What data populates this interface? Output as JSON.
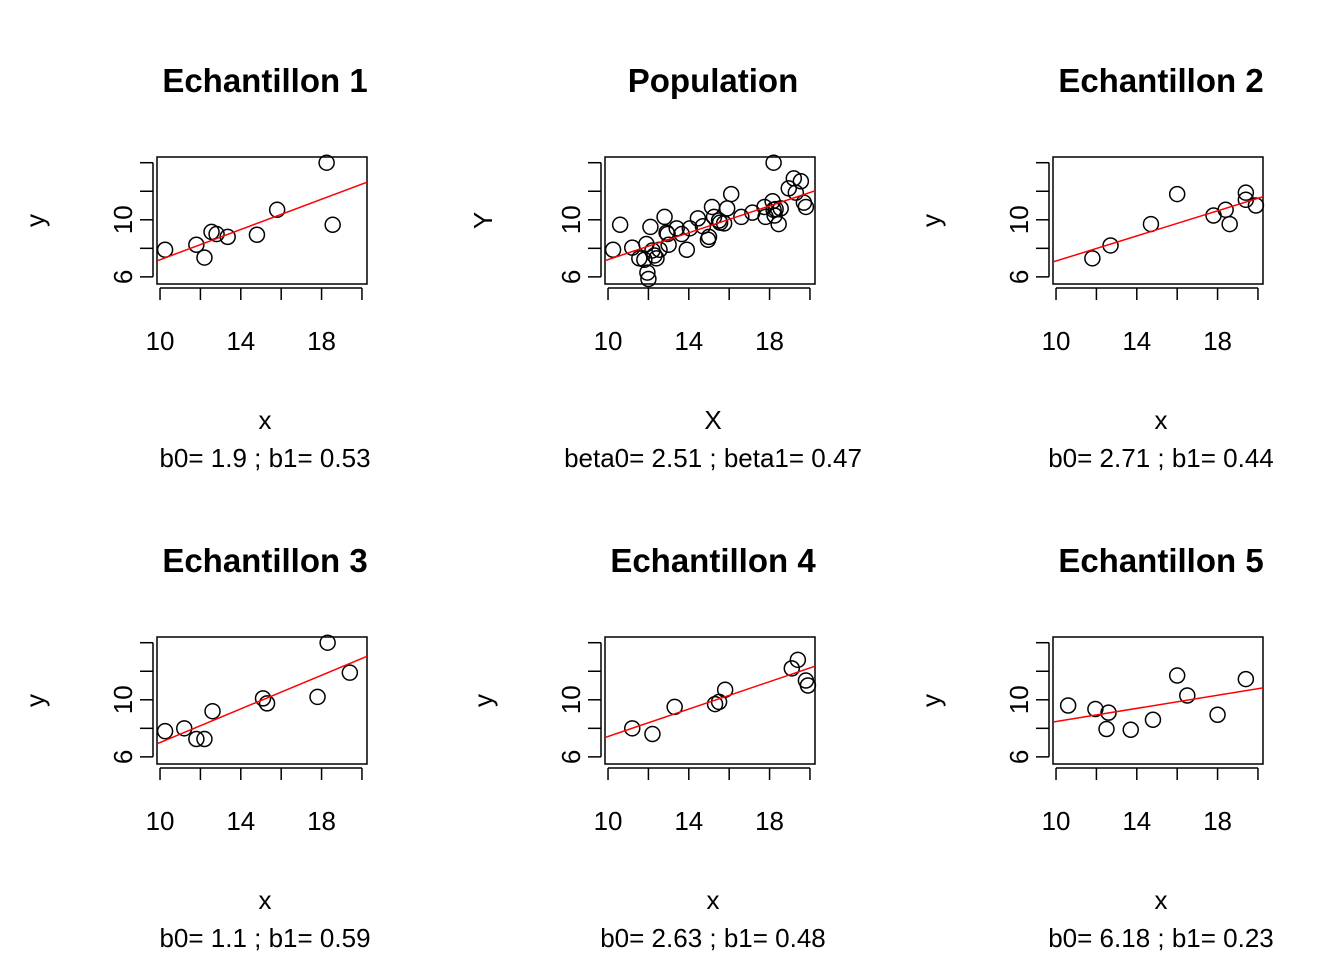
{
  "chart_data": [
    {
      "type": "scatter",
      "title": "Echantillon  1",
      "xlabel": "x",
      "ylabel": "y",
      "subtitle": "b0= 1.9 ; b1= 0.53",
      "xlim": [
        9.85,
        20.25
      ],
      "ylim": [
        5.5,
        14.4
      ],
      "xticks": [
        10,
        12,
        14,
        16,
        18,
        20
      ],
      "xtick_labels": [
        "10",
        "",
        "14",
        "",
        "18",
        ""
      ],
      "yticks": [
        6,
        8,
        10,
        12,
        14
      ],
      "ytick_labels": [
        "6",
        "",
        "10",
        "",
        ""
      ],
      "fit": {
        "intercept": 1.9,
        "slope": 0.53,
        "color": "#ff0000"
      },
      "points": [
        [
          10.25,
          7.9
        ],
        [
          11.8,
          8.25
        ],
        [
          12.2,
          7.35
        ],
        [
          12.55,
          9.15
        ],
        [
          12.8,
          9.0
        ],
        [
          13.35,
          8.8
        ],
        [
          14.8,
          8.95
        ],
        [
          15.8,
          10.7
        ],
        [
          18.25,
          14.0
        ],
        [
          18.55,
          9.65
        ]
      ]
    },
    {
      "type": "scatter",
      "title": "Population",
      "xlabel": "X",
      "ylabel": "Y",
      "subtitle": "beta0= 2.51 ; beta1= 0.47",
      "xlim": [
        9.85,
        20.25
      ],
      "ylim": [
        5.5,
        14.4
      ],
      "xticks": [
        10,
        12,
        14,
        16,
        18,
        20
      ],
      "xtick_labels": [
        "10",
        "",
        "14",
        "",
        "18",
        ""
      ],
      "yticks": [
        6,
        8,
        10,
        12,
        14
      ],
      "ytick_labels": [
        "6",
        "",
        "10",
        "",
        ""
      ],
      "fit": {
        "intercept": 2.51,
        "slope": 0.47,
        "color": "#ff0000"
      },
      "points": [
        [
          10.25,
          7.9
        ],
        [
          10.6,
          9.65
        ],
        [
          11.2,
          8.05
        ],
        [
          11.55,
          7.3
        ],
        [
          11.8,
          7.2
        ],
        [
          11.9,
          8.3
        ],
        [
          11.95,
          6.3
        ],
        [
          12.0,
          5.85
        ],
        [
          12.1,
          9.5
        ],
        [
          12.2,
          7.85
        ],
        [
          12.3,
          7.5
        ],
        [
          12.4,
          7.3
        ],
        [
          12.55,
          7.9
        ],
        [
          12.8,
          10.2
        ],
        [
          12.9,
          9.1
        ],
        [
          12.95,
          9.0
        ],
        [
          13.0,
          8.25
        ],
        [
          13.4,
          9.4
        ],
        [
          13.65,
          9.0
        ],
        [
          13.9,
          7.9
        ],
        [
          14.05,
          9.4
        ],
        [
          14.45,
          10.1
        ],
        [
          14.7,
          9.55
        ],
        [
          14.95,
          8.6
        ],
        [
          15.0,
          8.8
        ],
        [
          15.15,
          10.9
        ],
        [
          15.25,
          10.2
        ],
        [
          15.5,
          9.95
        ],
        [
          15.55,
          9.8
        ],
        [
          15.75,
          9.75
        ],
        [
          15.9,
          10.8
        ],
        [
          16.1,
          11.8
        ],
        [
          16.6,
          10.2
        ],
        [
          17.15,
          10.5
        ],
        [
          17.75,
          10.9
        ],
        [
          17.8,
          10.2
        ],
        [
          18.15,
          11.3
        ],
        [
          18.2,
          10.7
        ],
        [
          18.2,
          14.0
        ],
        [
          18.25,
          10.3
        ],
        [
          18.3,
          10.75
        ],
        [
          18.45,
          9.7
        ],
        [
          18.55,
          10.8
        ],
        [
          18.95,
          12.2
        ],
        [
          19.2,
          12.9
        ],
        [
          19.3,
          11.9
        ],
        [
          19.55,
          12.7
        ],
        [
          19.7,
          11.2
        ],
        [
          19.8,
          10.9
        ]
      ]
    },
    {
      "type": "scatter",
      "title": "Echantillon  2",
      "xlabel": "x",
      "ylabel": "y",
      "subtitle": "b0= 2.71 ; b1= 0.44",
      "xlim": [
        9.85,
        20.25
      ],
      "ylim": [
        5.5,
        14.4
      ],
      "xticks": [
        10,
        12,
        14,
        16,
        18,
        20
      ],
      "xtick_labels": [
        "10",
        "",
        "14",
        "",
        "18",
        ""
      ],
      "yticks": [
        6,
        8,
        10,
        12,
        14
      ],
      "ytick_labels": [
        "6",
        "",
        "10",
        "",
        ""
      ],
      "fit": {
        "intercept": 2.71,
        "slope": 0.44,
        "color": "#ff0000"
      },
      "points": [
        [
          11.8,
          7.3
        ],
        [
          12.7,
          8.2
        ],
        [
          14.7,
          9.7
        ],
        [
          16.0,
          11.8
        ],
        [
          17.8,
          10.3
        ],
        [
          18.4,
          10.7
        ],
        [
          18.6,
          9.7
        ],
        [
          19.4,
          11.9
        ],
        [
          19.4,
          11.4
        ],
        [
          19.9,
          11.0
        ]
      ]
    },
    {
      "type": "scatter",
      "title": "Echantillon  3",
      "xlabel": "x",
      "ylabel": "y",
      "subtitle": "b0= 1.1 ; b1= 0.59",
      "xlim": [
        9.85,
        20.25
      ],
      "ylim": [
        5.5,
        14.4
      ],
      "xticks": [
        10,
        12,
        14,
        16,
        18,
        20
      ],
      "xtick_labels": [
        "10",
        "",
        "14",
        "",
        "18",
        ""
      ],
      "yticks": [
        6,
        8,
        10,
        12,
        14
      ],
      "ytick_labels": [
        "6",
        "",
        "10",
        "",
        ""
      ],
      "fit": {
        "intercept": 1.1,
        "slope": 0.59,
        "color": "#ff0000"
      },
      "points": [
        [
          10.25,
          7.8
        ],
        [
          11.2,
          8.0
        ],
        [
          11.8,
          7.25
        ],
        [
          12.2,
          7.25
        ],
        [
          12.6,
          9.2
        ],
        [
          15.1,
          10.1
        ],
        [
          15.3,
          9.75
        ],
        [
          17.8,
          10.2
        ],
        [
          18.3,
          14.0
        ],
        [
          19.4,
          11.9
        ]
      ]
    },
    {
      "type": "scatter",
      "title": "Echantillon  4",
      "xlabel": "x",
      "ylabel": "y",
      "subtitle": "b0= 2.63 ; b1= 0.48",
      "xlim": [
        9.85,
        20.25
      ],
      "ylim": [
        5.5,
        14.4
      ],
      "xticks": [
        10,
        12,
        14,
        16,
        18,
        20
      ],
      "xtick_labels": [
        "10",
        "",
        "14",
        "",
        "18",
        ""
      ],
      "yticks": [
        6,
        8,
        10,
        12,
        14
      ],
      "ytick_labels": [
        "6",
        "",
        "10",
        "",
        ""
      ],
      "fit": {
        "intercept": 2.63,
        "slope": 0.48,
        "color": "#ff0000"
      },
      "points": [
        [
          11.2,
          8.0
        ],
        [
          12.2,
          7.6
        ],
        [
          13.3,
          9.5
        ],
        [
          15.3,
          9.7
        ],
        [
          15.5,
          9.85
        ],
        [
          15.8,
          10.7
        ],
        [
          19.1,
          12.2
        ],
        [
          19.4,
          12.8
        ],
        [
          19.8,
          11.35
        ],
        [
          19.9,
          11.0
        ]
      ]
    },
    {
      "type": "scatter",
      "title": "Echantillon  5",
      "xlabel": "x",
      "ylabel": "y",
      "subtitle": "b0= 6.18 ; b1= 0.23",
      "xlim": [
        9.85,
        20.25
      ],
      "ylim": [
        5.5,
        14.4
      ],
      "xticks": [
        10,
        12,
        14,
        16,
        18,
        20
      ],
      "xtick_labels": [
        "10",
        "",
        "14",
        "",
        "18",
        ""
      ],
      "yticks": [
        6,
        8,
        10,
        12,
        14
      ],
      "ytick_labels": [
        "6",
        "",
        "10",
        "",
        ""
      ],
      "fit": {
        "intercept": 6.18,
        "slope": 0.23,
        "color": "#ff0000"
      },
      "points": [
        [
          10.6,
          9.6
        ],
        [
          11.95,
          9.35
        ],
        [
          12.6,
          9.1
        ],
        [
          12.5,
          7.95
        ],
        [
          13.7,
          7.9
        ],
        [
          14.8,
          8.6
        ],
        [
          16.0,
          11.7
        ],
        [
          16.5,
          10.3
        ],
        [
          18.0,
          8.95
        ],
        [
          19.4,
          11.45
        ]
      ]
    }
  ]
}
